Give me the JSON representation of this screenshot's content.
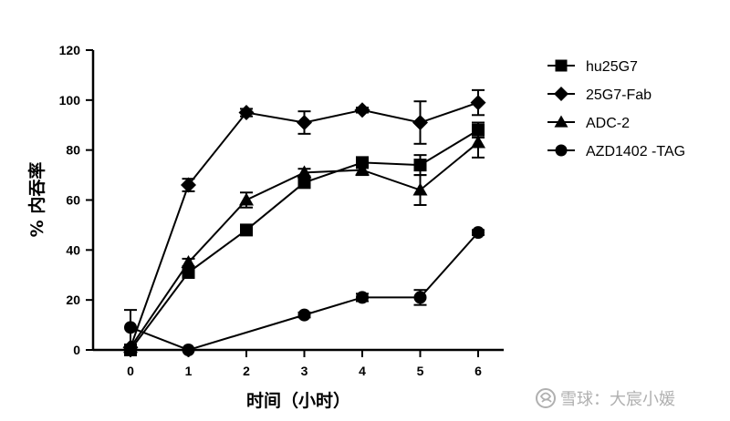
{
  "chart_data": {
    "type": "line",
    "title": "",
    "xlabel": "时间（小时）",
    "ylabel": "% 内吞率",
    "x": [
      0,
      1,
      2,
      3,
      4,
      5,
      6
    ],
    "xticks": [
      "0",
      "1",
      "2",
      "3",
      "4",
      "5",
      "6"
    ],
    "yticks": [
      "0",
      "20",
      "40",
      "60",
      "80",
      "100",
      "120"
    ],
    "xlim": [
      -0.6,
      6.6
    ],
    "ylim": [
      0,
      120
    ],
    "grid": false,
    "legend_position": "right",
    "series": [
      {
        "name": "hu25G7",
        "marker": "square",
        "values": [
          0,
          31,
          48,
          67,
          75,
          74,
          88
        ],
        "errors": [
          0,
          2,
          1.5,
          2,
          2,
          4,
          3
        ]
      },
      {
        "name": "25G7-Fab",
        "marker": "diamond",
        "values": [
          1,
          66,
          95,
          91,
          96,
          91,
          99
        ],
        "errors": [
          0,
          2.5,
          1.5,
          4.5,
          1,
          8.5,
          5
        ]
      },
      {
        "name": "ADC-2",
        "marker": "triangle",
        "values": [
          1,
          35,
          60,
          71,
          72,
          64,
          83
        ],
        "errors": [
          0,
          1.5,
          3,
          1.5,
          2,
          6,
          6
        ]
      },
      {
        "name": "AZD1402 -TAG",
        "marker": "circle",
        "values": [
          9,
          0,
          null,
          14,
          21,
          21,
          47
        ],
        "errors": [
          7,
          0,
          0,
          1,
          1.5,
          3,
          1
        ]
      }
    ]
  },
  "watermark": {
    "text": "雪球：大宸小媛",
    "icon": "snowball-logo-icon"
  },
  "colors": {
    "ink": "#000000",
    "watermark": "#b0b0b0"
  }
}
